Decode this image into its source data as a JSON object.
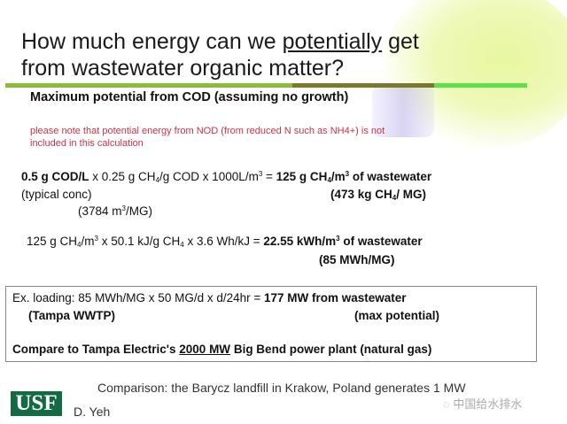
{
  "title": {
    "line1_pre": "How much energy can we ",
    "line1_u": "potentially",
    "line1_post": " get",
    "line2": "from wastewater organic matter?"
  },
  "colors": {
    "accent_green": "#8dbb3c",
    "olive": "#7a7a2a",
    "bright_green": "#5ee04a",
    "note_red": "#d0304a",
    "logo_green": "#146b43"
  },
  "subtitle": "Maximum potential from COD (assuming no growth)",
  "note": {
    "line1": "please note that potential energy from NOD (from reduced N such as NH4+) is not",
    "line2": "included in this calculation"
  },
  "eq1": {
    "a": "0.5 g COD/L",
    "b": " x 0.25 g CH",
    "s1": "4",
    "c": "/g COD x 1000L/m",
    "s2": "3",
    "d": " = ",
    "e": "125 g CH",
    "s3": "4",
    "f": "/m",
    "s4": "3",
    "g": " of wastewater",
    "typical": "(typical conc)",
    "conv_a": "(3784 m",
    "conv_s": "3",
    "conv_b": "/MG)",
    "kg_a": "(473 kg CH",
    "kg_s": "4",
    "kg_b": "/ MG)"
  },
  "eq2": {
    "a": "125 g CH",
    "s1": "4",
    "b": "/m",
    "s2": "3",
    "c": "  x 50.1 kJ/g CH",
    "s3": "4",
    "d": " x 3.6 Wh/kJ = ",
    "e": "22.55 kWh/m",
    "s4": "3",
    "f": " of wastewater",
    "mwh": "(85 MWh/MG)"
  },
  "box": {
    "l1a": "Ex. loading: 85 MWh/MG x 50 MG/d x d/24hr = ",
    "l1b": "177 MW from wastewater",
    "l2a": "(Tampa WWTP)",
    "l2b": "(max potential)",
    "l3a": "Compare to Tampa Electric's ",
    "l3u": "2000 MW",
    "l3b": " Big Bend power plant  (natural gas)"
  },
  "comparison": "Comparison: the Barycz landfill in Krakow, Poland generates 1 MW",
  "logo": "USF",
  "author": "D. Yeh",
  "watermark": "中国给水排水"
}
